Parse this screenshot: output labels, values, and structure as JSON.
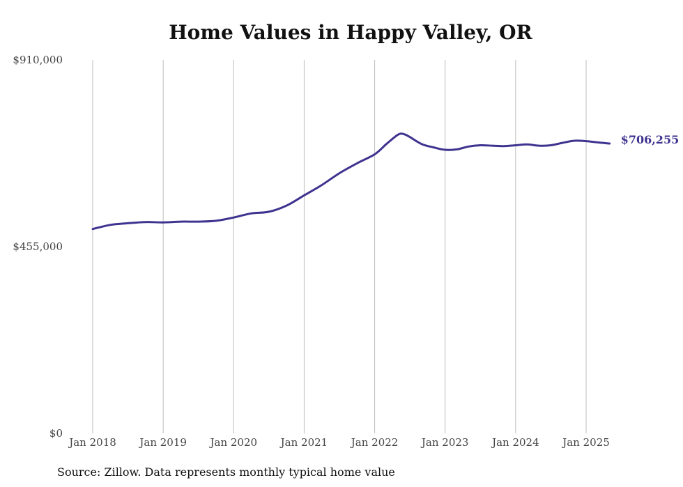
{
  "chart_data": {
    "type": "line",
    "title": "Home Values in Happy Valley, OR",
    "xlabel": "",
    "ylabel": "",
    "ylim": [
      0,
      910000
    ],
    "y_ticks": [
      "$0",
      "$455,000",
      "$910,000"
    ],
    "x_ticks": [
      "Jan 2018",
      "Jan 2019",
      "Jan 2020",
      "Jan 2021",
      "Jan 2022",
      "Jan 2023",
      "Jan 2024",
      "Jan 2025"
    ],
    "grid": "vertical",
    "line_color": "#3f3390",
    "end_label": "$706,255",
    "series": [
      {
        "x": [
          "2018-01",
          "2018-04",
          "2018-07",
          "2018-10",
          "2019-01",
          "2019-04",
          "2019-07",
          "2019-10",
          "2020-01",
          "2020-04",
          "2020-07",
          "2020-10",
          "2021-01",
          "2021-04",
          "2021-07",
          "2021-10",
          "2022-01",
          "2022-03",
          "2022-05",
          "2022-06",
          "2022-07",
          "2022-09",
          "2022-11",
          "2023-01",
          "2023-03",
          "2023-05",
          "2023-07",
          "2023-09",
          "2023-11",
          "2024-01",
          "2024-03",
          "2024-05",
          "2024-07",
          "2024-09",
          "2024-11",
          "2025-01",
          "2025-03",
          "2025-05"
        ],
        "values": [
          498000,
          508000,
          512000,
          515000,
          514000,
          516000,
          516000,
          518000,
          526000,
          536000,
          540000,
          555000,
          580000,
          605000,
          634000,
          658000,
          680000,
          705000,
          728000,
          729000,
          722000,
          705000,
          697000,
          691000,
          692000,
          699000,
          702000,
          701000,
          700000,
          702000,
          704000,
          701000,
          702000,
          708000,
          713000,
          712000,
          709000,
          706255
        ]
      }
    ]
  },
  "source_text": "Source: Zillow. Data represents monthly typical home value"
}
